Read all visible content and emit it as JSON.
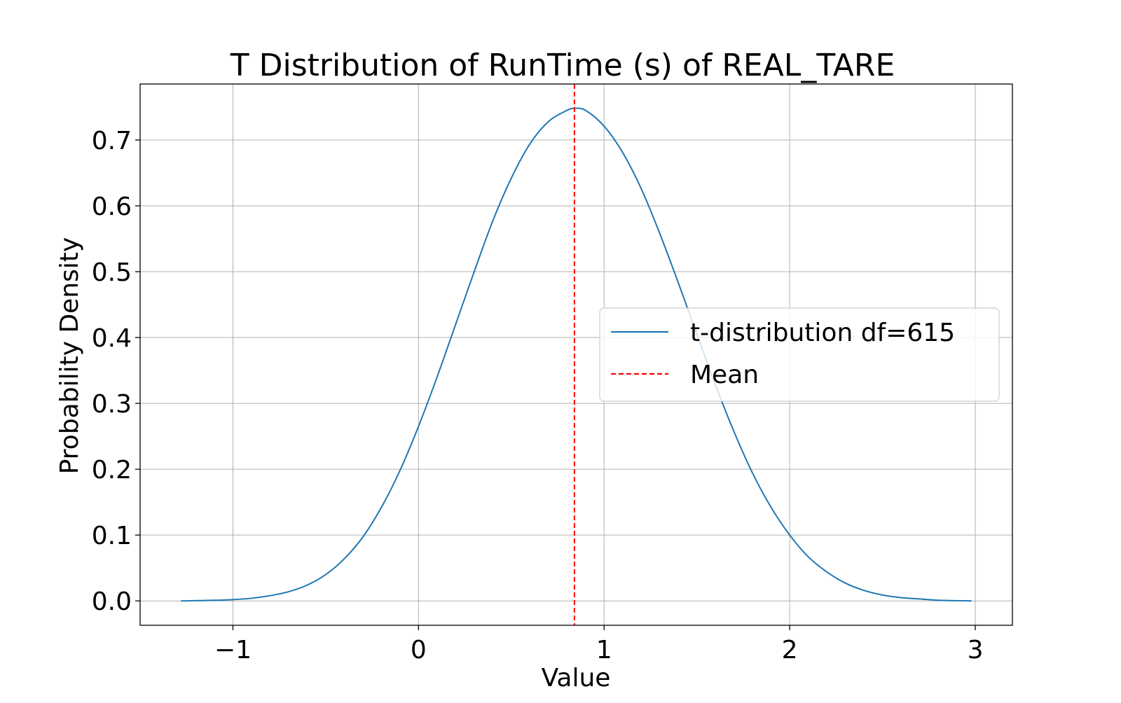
{
  "chart_data": {
    "type": "line",
    "title": "T Distribution of RunTime (s) of REAL_TARE",
    "xlabel": "Value",
    "ylabel": "Probability Density",
    "xlim": [
      -1.5,
      3.2
    ],
    "ylim": [
      -0.037,
      0.785
    ],
    "xticks": [
      -1,
      0,
      1,
      2,
      3
    ],
    "xtick_labels": [
      "−1",
      "0",
      "1",
      "2",
      "3"
    ],
    "yticks": [
      0.0,
      0.1,
      0.2,
      0.3,
      0.4,
      0.5,
      0.6,
      0.7
    ],
    "ytick_labels": [
      "0.0",
      "0.1",
      "0.2",
      "0.3",
      "0.4",
      "0.5",
      "0.6",
      "0.7"
    ],
    "grid": true,
    "legend_position": "center-right",
    "series": [
      {
        "name": "t-distribution df=615",
        "color": "#1f77b4",
        "style": "solid",
        "x": [
          -1.28,
          -1.1,
          -1.0,
          -0.9,
          -0.8,
          -0.7,
          -0.6,
          -0.5,
          -0.4,
          -0.3,
          -0.2,
          -0.1,
          0.0,
          0.1,
          0.2,
          0.3,
          0.4,
          0.5,
          0.6,
          0.7,
          0.8,
          0.84,
          0.9,
          1.0,
          1.1,
          1.2,
          1.3,
          1.4,
          1.5,
          1.6,
          1.7,
          1.8,
          1.9,
          2.0,
          2.1,
          2.2,
          2.3,
          2.4,
          2.5,
          2.6,
          2.7,
          2.8,
          2.98
        ],
        "y": [
          0.0,
          0.001,
          0.002,
          0.004,
          0.008,
          0.014,
          0.024,
          0.04,
          0.064,
          0.097,
          0.142,
          0.198,
          0.265,
          0.34,
          0.42,
          0.5,
          0.577,
          0.642,
          0.694,
          0.728,
          0.745,
          0.748,
          0.745,
          0.721,
          0.681,
          0.626,
          0.558,
          0.483,
          0.405,
          0.328,
          0.257,
          0.194,
          0.142,
          0.1,
          0.067,
          0.044,
          0.027,
          0.016,
          0.009,
          0.005,
          0.003,
          0.001,
          0.0
        ]
      },
      {
        "name": "Mean",
        "color": "#ff0000",
        "style": "dashed",
        "vline_x": 0.84
      }
    ]
  }
}
